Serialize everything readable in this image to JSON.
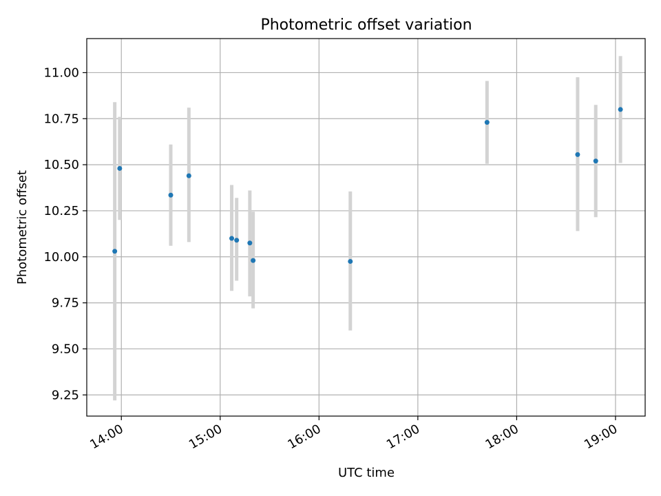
{
  "chart_data": {
    "type": "scatter",
    "title": "Photometric offset variation",
    "xlabel": "UTC time",
    "ylabel": "Photometric offset",
    "xlim": [
      "13:39",
      "19:18"
    ],
    "ylim": [
      9.135,
      11.185
    ],
    "x_ticks": [
      "14:00",
      "15:00",
      "16:00",
      "17:00",
      "18:00",
      "19:00"
    ],
    "y_ticks": [
      "9.25",
      "9.50",
      "9.75",
      "10.00",
      "10.25",
      "10.50",
      "10.75",
      "11.00"
    ],
    "grid": true,
    "marker_color": "#1f77b4",
    "errorbar_color": "#d3d3d3",
    "points": [
      {
        "x": "13:56",
        "y": 10.03,
        "ylow": 9.22,
        "yhigh": 10.84
      },
      {
        "x": "13:59",
        "y": 10.48,
        "ylow": 10.2,
        "yhigh": 10.76
      },
      {
        "x": "14:30",
        "y": 10.335,
        "ylow": 10.06,
        "yhigh": 10.61
      },
      {
        "x": "14:41",
        "y": 10.44,
        "ylow": 10.08,
        "yhigh": 10.81
      },
      {
        "x": "15:07",
        "y": 10.1,
        "ylow": 9.815,
        "yhigh": 10.39
      },
      {
        "x": "15:10",
        "y": 10.09,
        "ylow": 9.87,
        "yhigh": 10.32
      },
      {
        "x": "15:18",
        "y": 10.075,
        "ylow": 9.785,
        "yhigh": 10.36
      },
      {
        "x": "15:20",
        "y": 9.98,
        "ylow": 9.72,
        "yhigh": 10.245
      },
      {
        "x": "16:19",
        "y": 9.975,
        "ylow": 9.6,
        "yhigh": 10.355
      },
      {
        "x": "17:42",
        "y": 10.73,
        "ylow": 10.505,
        "yhigh": 10.955
      },
      {
        "x": "18:37",
        "y": 10.555,
        "ylow": 10.14,
        "yhigh": 10.975
      },
      {
        "x": "18:48",
        "y": 10.52,
        "ylow": 10.215,
        "yhigh": 10.825
      },
      {
        "x": "19:03",
        "y": 10.8,
        "ylow": 10.51,
        "yhigh": 11.09
      }
    ]
  }
}
